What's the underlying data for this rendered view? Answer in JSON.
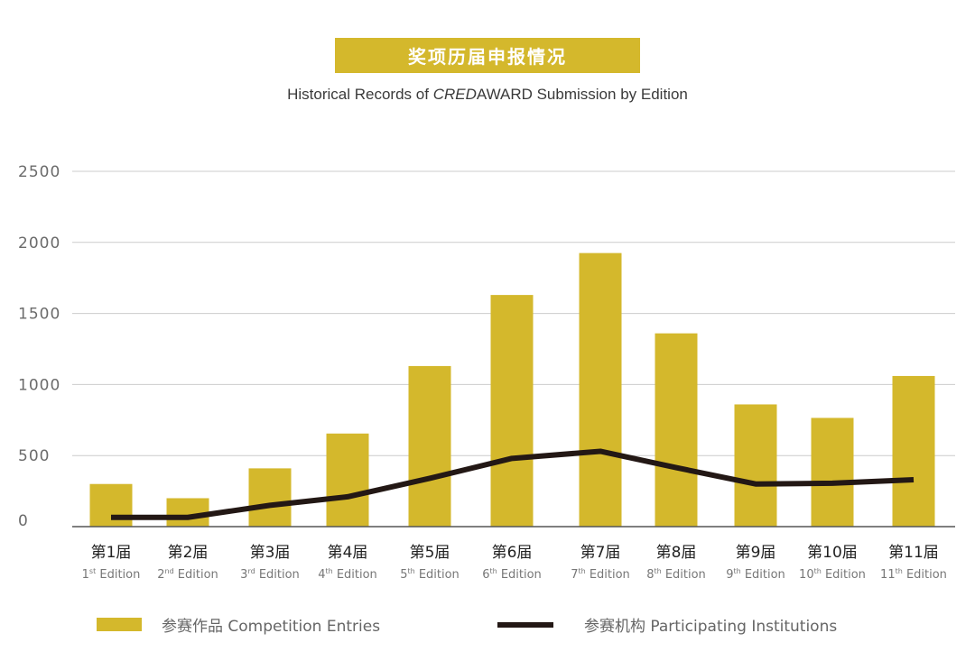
{
  "header": {
    "title_cn": "奖项历届申报情况",
    "subtitle_prefix": "Historical Records of ",
    "subtitle_brand": "CRED",
    "subtitle_suffix": "AWARD Submission by Edition"
  },
  "colors": {
    "bar": "#d4b82c",
    "line": "#231815",
    "grid": "#cccccc",
    "axis": "#555555",
    "tick": "#6b6b6b"
  },
  "chart_data": {
    "type": "bar",
    "categories": [
      "第1届",
      "第2届",
      "第3届",
      "第4届",
      "第5届",
      "第6届",
      "第7届",
      "第8届",
      "第9届",
      "第10届",
      "第11届"
    ],
    "categories_en": [
      {
        "n": "1",
        "sup": "st",
        "t": " Edition"
      },
      {
        "n": "2",
        "sup": "nd",
        "t": " Edition"
      },
      {
        "n": "3",
        "sup": "rd",
        "t": " Edition"
      },
      {
        "n": "4",
        "sup": "th",
        "t": " Edition"
      },
      {
        "n": "5",
        "sup": "th",
        "t": " Edition"
      },
      {
        "n": "6",
        "sup": "th",
        "t": " Edition"
      },
      {
        "n": "7",
        "sup": "th",
        "t": " Edition"
      },
      {
        "n": "8",
        "sup": "th",
        "t": " Edition"
      },
      {
        "n": "9",
        "sup": "th",
        "t": " Edition"
      },
      {
        "n": "10",
        "sup": "th",
        "t": " Edition"
      },
      {
        "n": "11",
        "sup": "th",
        "t": " Edition"
      }
    ],
    "series": [
      {
        "name": "参赛作品  Competition Entries",
        "type": "bar",
        "values": [
          300,
          200,
          410,
          655,
          1130,
          1630,
          1925,
          1360,
          860,
          765,
          1060
        ]
      },
      {
        "name": "参赛机构  Participating Institutions",
        "type": "line",
        "values": [
          65,
          65,
          150,
          210,
          340,
          480,
          530,
          415,
          300,
          305,
          330
        ]
      }
    ],
    "ylim": [
      0,
      2500
    ],
    "yticks": [
      0,
      500,
      1000,
      1500,
      2000,
      2500
    ],
    "grid": true,
    "legend_position": "bottom"
  }
}
